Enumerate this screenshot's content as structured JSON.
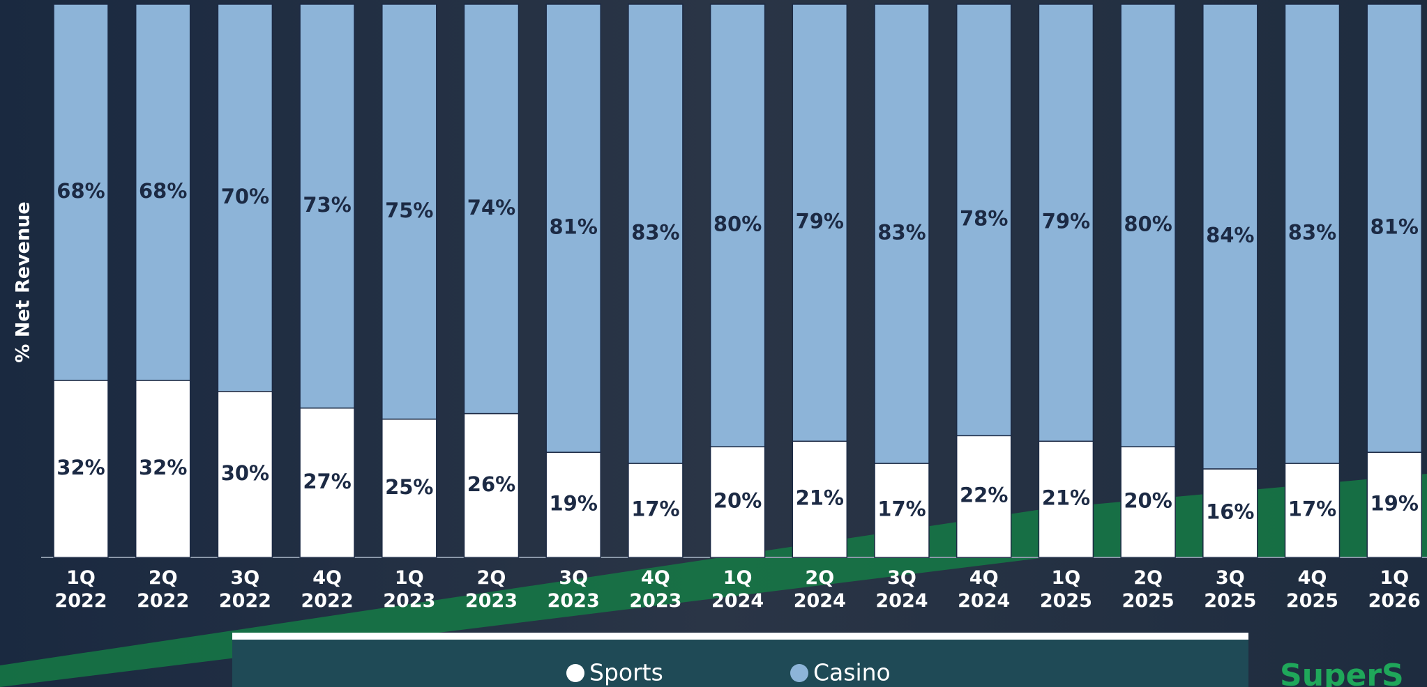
{
  "chart_data": {
    "type": "stacked_bar",
    "y_axis_label": "% Net Revenue",
    "categories": [
      "1Q 2022",
      "2Q 2022",
      "3Q 2022",
      "4Q 2022",
      "1Q 2023",
      "2Q 2023",
      "3Q 2023",
      "4Q 2023",
      "1Q 2024",
      "2Q 2024",
      "3Q 2024",
      "4Q 2024",
      "1Q 2025",
      "2Q 2025",
      "3Q 2025",
      "4Q 2025",
      "1Q 2026"
    ],
    "series": [
      {
        "name": "Sports",
        "color": "#ffffff",
        "values": [
          32,
          32,
          30,
          27,
          25,
          26,
          19,
          17,
          20,
          21,
          17,
          22,
          21,
          20,
          16,
          17,
          19
        ],
        "value_labels": [
          "32%",
          "32%",
          "30%",
          "27%",
          "25%",
          "26%",
          "19%",
          "17%",
          "20%",
          "21%",
          "17%",
          "22%",
          "21%",
          "20%",
          "16%",
          "17%",
          "19%"
        ]
      },
      {
        "name": "Casino",
        "color": "#8db4d8",
        "values": [
          68,
          68,
          70,
          73,
          75,
          74,
          81,
          83,
          80,
          79,
          83,
          78,
          79,
          80,
          84,
          83,
          81
        ],
        "value_labels": [
          "68%",
          "68%",
          "70%",
          "73%",
          "75%",
          "74%",
          "81%",
          "83%",
          "80%",
          "79%",
          "83%",
          "78%",
          "79%",
          "80%",
          "84%",
          "83%",
          "81%"
        ]
      }
    ],
    "ylim": [
      0,
      100
    ],
    "logo": "SuperS"
  }
}
